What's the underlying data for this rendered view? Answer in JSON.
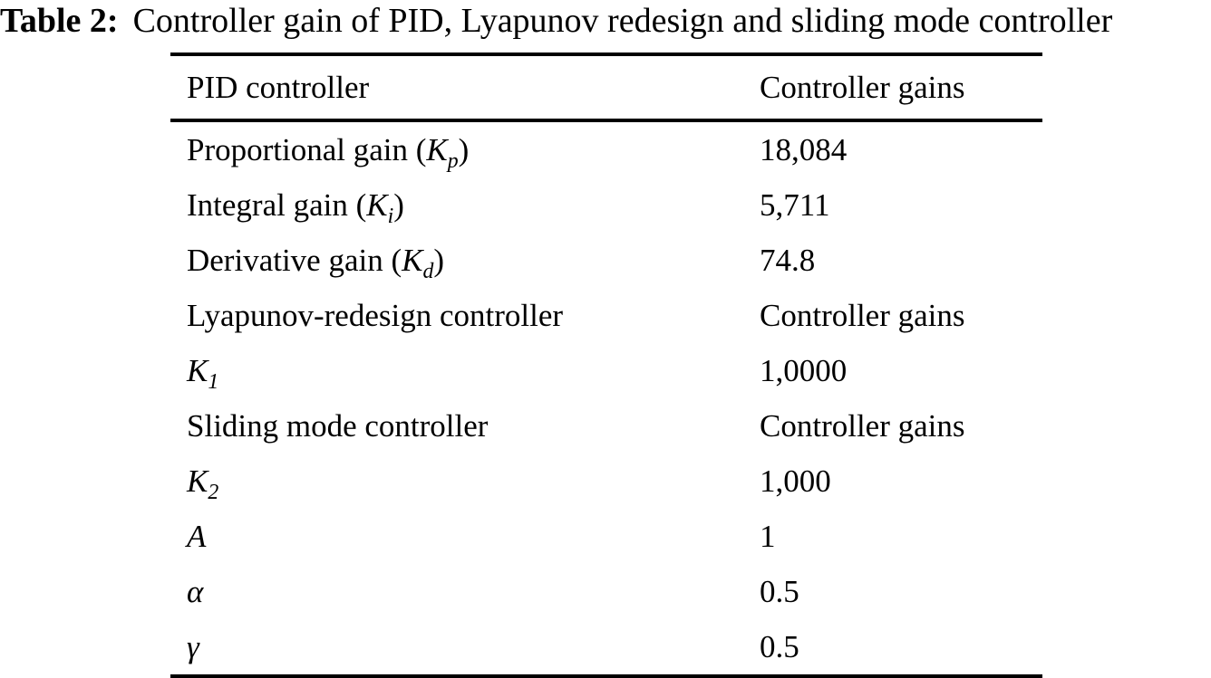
{
  "caption": {
    "label": "Table 2:",
    "text": "Controller gain of PID, Lyapunov redesign and sliding mode controller"
  },
  "table": {
    "header": {
      "col1": "PID controller",
      "col2": "Controller gains"
    },
    "rows": [
      {
        "label": {
          "pre": "Proportional gain (",
          "math": "K",
          "sub": "p",
          "post": ")"
        },
        "value": "18,084"
      },
      {
        "label": {
          "pre": "Integral gain (",
          "math": "K",
          "sub": "i",
          "post": ")"
        },
        "value": "5,711"
      },
      {
        "label": {
          "pre": "Derivative gain (",
          "math": "K",
          "sub": "d",
          "post": ")"
        },
        "value": "74.8"
      },
      {
        "label": {
          "pre": "Lyapunov-redesign controller"
        },
        "value": "Controller gains"
      },
      {
        "label": {
          "math": "K",
          "sub": "1"
        },
        "value": "1,0000"
      },
      {
        "label": {
          "pre": "Sliding mode controller"
        },
        "value": "Controller gains"
      },
      {
        "label": {
          "math": "K",
          "sub": "2"
        },
        "value": "1,000"
      },
      {
        "label": {
          "math": "A"
        },
        "value": "1"
      },
      {
        "label": {
          "math": "α"
        },
        "value": "0.5"
      },
      {
        "label": {
          "math": "γ"
        },
        "value": "0.5"
      }
    ]
  }
}
